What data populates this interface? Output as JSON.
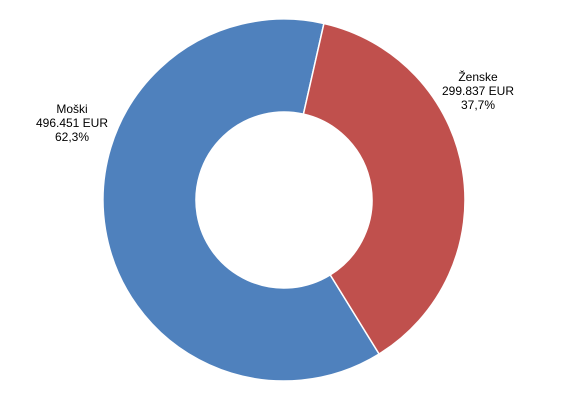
{
  "chart_data": {
    "type": "donut",
    "categories": [
      "Moški",
      "Ženske"
    ],
    "values": [
      496451,
      299837
    ],
    "value_labels": [
      "496.451 EUR",
      "299.837 EUR"
    ],
    "percents": [
      62.3,
      37.7
    ],
    "percent_labels": [
      "62,3%",
      "37,7%"
    ],
    "colors": [
      "#4f81bd",
      "#c0504d"
    ]
  }
}
